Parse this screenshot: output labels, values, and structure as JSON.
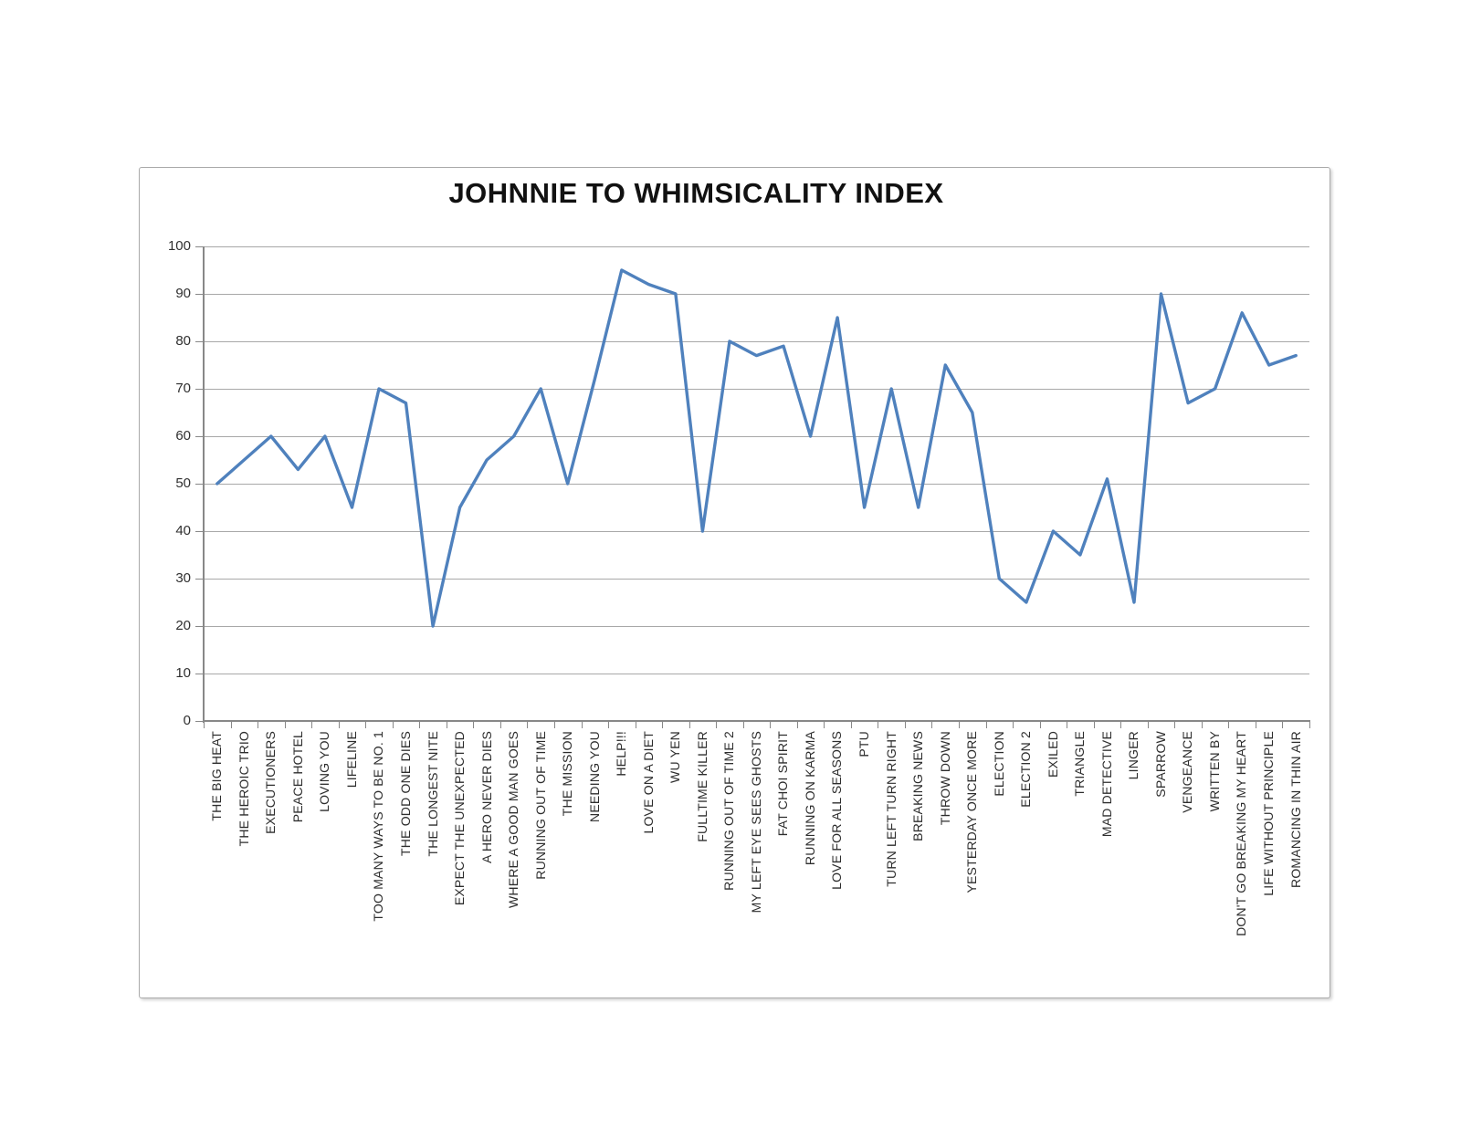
{
  "chart_data": {
    "type": "line",
    "title": "JOHNNIE TO WHIMSICALITY INDEX",
    "categories": [
      "THE BIG HEAT",
      "THE HEROIC TRIO",
      "EXECUTIONERS",
      "PEACE HOTEL",
      "LOVING YOU",
      "LIFELINE",
      "TOO MANY WAYS TO BE NO. 1",
      "THE ODD ONE DIES",
      "THE LONGEST NITE",
      "EXPECT THE UNEXPECTED",
      "A HERO NEVER DIES",
      "WHERE A GOOD MAN GOES",
      "RUNNING OUT OF TIME",
      "THE MISSION",
      "NEEDING YOU",
      "HELP!!!",
      "LOVE ON A DIET",
      "WU YEN",
      "FULLTIME KILLER",
      "RUNNING OUT OF TIME 2",
      "MY LEFT EYE SEES GHOSTS",
      "FAT CHOI SPIRIT",
      "RUNNING ON KARMA",
      "LOVE FOR ALL SEASONS",
      "PTU",
      "TURN LEFT TURN RIGHT",
      "BREAKING NEWS",
      "THROW DOWN",
      "YESTERDAY ONCE MORE",
      "ELECTION",
      "ELECTION 2",
      "EXILED",
      "TRIANGLE",
      "MAD DETECTIVE",
      "LINGER",
      "SPARROW",
      "VENGEANCE",
      "WRITTEN BY",
      "DON'T GO BREAKING MY HEART",
      "LIFE WITHOUT PRINCIPLE",
      "ROMANCING IN THIN AIR"
    ],
    "values": [
      50,
      55,
      60,
      53,
      60,
      45,
      70,
      67,
      20,
      45,
      55,
      60,
      70,
      50,
      72,
      95,
      92,
      90,
      40,
      80,
      77,
      79,
      60,
      85,
      45,
      70,
      45,
      75,
      65,
      30,
      25,
      40,
      35,
      51,
      25,
      90,
      67,
      70,
      86,
      75,
      77
    ],
    "ylim": [
      0,
      100
    ],
    "ytick_interval": 10,
    "xlabel": "",
    "ylabel": "",
    "legend": "none",
    "grid": "horizontal",
    "colors": {
      "line": "#4f81bd",
      "grid": "#a8a8a8",
      "axis": "#888888",
      "tick": "#888888",
      "label_text": "#2d2d2d",
      "title_text": "#111111",
      "frame_border": "#ababab",
      "background": "#ffffff"
    }
  }
}
